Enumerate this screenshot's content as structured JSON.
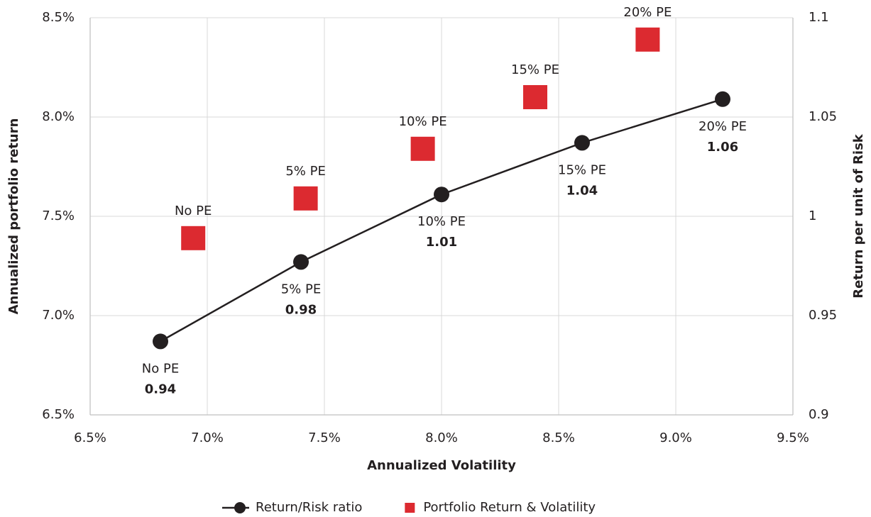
{
  "chart_data": {
    "type": "scatter",
    "x_label": "Annualized Volatility",
    "y_label": "Annualized  portfolio return",
    "y2_label": "Return per unit of Risk",
    "xlim": [
      6.5,
      9.5
    ],
    "ylim": [
      6.5,
      8.5
    ],
    "y2lim": [
      0.9,
      1.1
    ],
    "xticks": [
      {
        "value": 6.5,
        "label": "6.5%"
      },
      {
        "value": 7.0,
        "label": "7.0%"
      },
      {
        "value": 7.5,
        "label": "7.5%"
      },
      {
        "value": 8.0,
        "label": "8.0%"
      },
      {
        "value": 8.5,
        "label": "8.5%"
      },
      {
        "value": 9.0,
        "label": "9.0%"
      },
      {
        "value": 9.5,
        "label": "9.5%"
      }
    ],
    "yticks": [
      {
        "value": 6.5,
        "label": "6.5%"
      },
      {
        "value": 7.0,
        "label": "7.0%"
      },
      {
        "value": 7.5,
        "label": "7.5%"
      },
      {
        "value": 8.0,
        "label": "8.0%"
      },
      {
        "value": 8.5,
        "label": "8.5%"
      }
    ],
    "y2ticks": [
      0.9,
      0.95,
      1,
      1.05,
      1.1
    ],
    "grid": true,
    "legend": "bottom",
    "series": [
      {
        "name": "Return/Risk ratio",
        "type": "line",
        "axis": "y2",
        "color": "#231f20",
        "labels": [
          "No PE",
          "5% PE",
          "10% PE",
          "15% PE",
          "20% PE"
        ],
        "x": [
          6.8,
          7.4,
          8.0,
          8.6,
          9.2
        ],
        "values": [
          0.937,
          0.977,
          1.011,
          1.037,
          1.059
        ],
        "value_labels": [
          "0.94",
          "0.98",
          "1.01",
          "1.04",
          "1.06"
        ]
      },
      {
        "name": "Portfolio Return & Volatility",
        "type": "scatter",
        "axis": "y",
        "color": "#dc2a30",
        "labels": [
          "No PE",
          "5% PE",
          "10% PE",
          "15% PE",
          "20% PE"
        ],
        "x": [
          6.94,
          7.42,
          7.92,
          8.4,
          8.88
        ],
        "values": [
          7.39,
          7.59,
          7.84,
          8.1,
          8.39
        ]
      }
    ]
  }
}
